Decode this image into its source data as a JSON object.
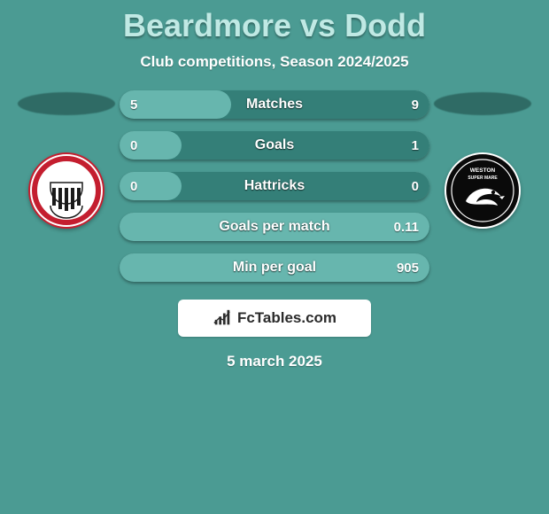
{
  "background_color": "#4b9b93",
  "title": {
    "text": "Beardmore vs Dodd",
    "color": "#c0e9e4",
    "fontsize": 36,
    "fontweight": 800
  },
  "subtitle": {
    "text": "Club competitions, Season 2024/2025",
    "color": "#ffffff",
    "fontsize": 17,
    "fontweight": 700
  },
  "date": {
    "text": "5 march 2025",
    "color": "#ffffff",
    "fontsize": 17,
    "fontweight": 700
  },
  "side_shadow_color": "#2f6b65",
  "left_crest": {
    "bg": "#ffffff",
    "ring": "#c41e2f"
  },
  "right_crest": {
    "bg": "#0a0a0a",
    "ring": "#ffffff"
  },
  "bars": {
    "track_color": "#347f78",
    "fill_color": "#67b6ae",
    "text_color": "#ffffff",
    "height": 32,
    "radius": 16,
    "label_fontsize": 16,
    "value_fontsize": 15,
    "items": [
      {
        "label": "Matches",
        "left": "5",
        "right": "9",
        "fill_from": "left",
        "fill_pct": 36
      },
      {
        "label": "Goals",
        "left": "0",
        "right": "1",
        "fill_from": "left",
        "fill_pct": 20
      },
      {
        "label": "Hattricks",
        "left": "0",
        "right": "0",
        "fill_from": "left",
        "fill_pct": 20
      },
      {
        "label": "Goals per match",
        "left": "",
        "right": "0.11",
        "fill_from": "right",
        "fill_pct": 100
      },
      {
        "label": "Min per goal",
        "left": "",
        "right": "905",
        "fill_from": "right",
        "fill_pct": 100
      }
    ]
  },
  "brand": {
    "bg": "#ffffff",
    "text": "FcTables.com",
    "text_color": "#2b2b2b",
    "icon_color": "#2b2b2b"
  }
}
